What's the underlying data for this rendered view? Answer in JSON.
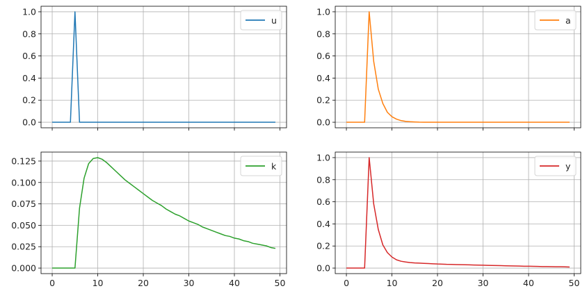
{
  "chart_data": [
    {
      "type": "line",
      "title": "",
      "xlabel": "",
      "ylabel": "",
      "xlim": [
        -2.45,
        51.45
      ],
      "ylim": [
        -0.05,
        1.05
      ],
      "xticks": [
        0,
        10,
        20,
        30,
        40,
        50
      ],
      "show_xtick_labels": false,
      "yticks": [
        0.0,
        0.2,
        0.4,
        0.6,
        0.8,
        1.0
      ],
      "ytick_format": 1,
      "grid": true,
      "legend": "top-right",
      "series": [
        {
          "name": "u",
          "color": "#1f77b4",
          "x_start": 0,
          "values": [
            0,
            0,
            0,
            0,
            0,
            1,
            0,
            0,
            0,
            0,
            0,
            0,
            0,
            0,
            0,
            0,
            0,
            0,
            0,
            0,
            0,
            0,
            0,
            0,
            0,
            0,
            0,
            0,
            0,
            0,
            0,
            0,
            0,
            0,
            0,
            0,
            0,
            0,
            0,
            0,
            0,
            0,
            0,
            0,
            0,
            0,
            0,
            0,
            0,
            0
          ]
        }
      ]
    },
    {
      "type": "line",
      "title": "",
      "xlabel": "",
      "ylabel": "",
      "xlim": [
        -2.45,
        51.45
      ],
      "ylim": [
        -0.05,
        1.05
      ],
      "xticks": [
        0,
        10,
        20,
        30,
        40,
        50
      ],
      "show_xtick_labels": false,
      "yticks": [
        0.0,
        0.2,
        0.4,
        0.6,
        0.8,
        1.0
      ],
      "ytick_format": 1,
      "grid": true,
      "legend": "top-right",
      "series": [
        {
          "name": "a",
          "color": "#ff7f0e",
          "x_start": 0,
          "values": [
            0,
            0,
            0,
            0,
            0,
            1,
            0.55,
            0.3,
            0.17,
            0.09,
            0.05,
            0.028,
            0.015,
            0.008,
            0.005,
            0.003,
            0.001,
            0,
            0,
            0,
            0,
            0,
            0,
            0,
            0,
            0,
            0,
            0,
            0,
            0,
            0,
            0,
            0,
            0,
            0,
            0,
            0,
            0,
            0,
            0,
            0,
            0,
            0,
            0,
            0,
            0,
            0,
            0,
            0,
            0
          ]
        }
      ]
    },
    {
      "type": "line",
      "title": "",
      "xlabel": "",
      "ylabel": "",
      "xlim": [
        -2.45,
        51.45
      ],
      "ylim": [
        -0.00645,
        0.1355
      ],
      "xticks": [
        0,
        10,
        20,
        30,
        40,
        50
      ],
      "show_xtick_labels": true,
      "yticks": [
        0.0,
        0.025,
        0.05,
        0.075,
        0.1,
        0.125
      ],
      "ytick_format": 3,
      "grid": true,
      "legend": "top-right",
      "series": [
        {
          "name": "k",
          "color": "#2ca02c",
          "x_start": 0,
          "values": [
            0,
            0,
            0,
            0,
            0,
            0,
            0.07,
            0.105,
            0.122,
            0.128,
            0.129,
            0.127,
            0.123,
            0.118,
            0.113,
            0.108,
            0.103,
            0.099,
            0.095,
            0.091,
            0.087,
            0.083,
            0.079,
            0.076,
            0.073,
            0.069,
            0.066,
            0.063,
            0.061,
            0.058,
            0.055,
            0.053,
            0.051,
            0.048,
            0.046,
            0.044,
            0.042,
            0.04,
            0.038,
            0.037,
            0.035,
            0.034,
            0.032,
            0.031,
            0.029,
            0.028,
            0.027,
            0.026,
            0.024,
            0.023
          ]
        }
      ]
    },
    {
      "type": "line",
      "title": "",
      "xlabel": "",
      "ylabel": "",
      "xlim": [
        -2.45,
        51.45
      ],
      "ylim": [
        -0.05,
        1.05
      ],
      "xticks": [
        0,
        10,
        20,
        30,
        40,
        50
      ],
      "show_xtick_labels": true,
      "yticks": [
        0.0,
        0.2,
        0.4,
        0.6,
        0.8,
        1.0
      ],
      "ytick_format": 1,
      "grid": true,
      "legend": "top-right",
      "series": [
        {
          "name": "y",
          "color": "#d62728",
          "x_start": 0,
          "values": [
            0,
            0,
            0,
            0,
            0,
            1,
            0.58,
            0.35,
            0.21,
            0.14,
            0.1,
            0.075,
            0.062,
            0.055,
            0.05,
            0.047,
            0.045,
            0.043,
            0.041,
            0.039,
            0.037,
            0.036,
            0.034,
            0.033,
            0.032,
            0.031,
            0.03,
            0.029,
            0.028,
            0.027,
            0.026,
            0.025,
            0.024,
            0.023,
            0.022,
            0.021,
            0.02,
            0.019,
            0.018,
            0.017,
            0.017,
            0.016,
            0.015,
            0.014,
            0.014,
            0.013,
            0.012,
            0.012,
            0.011,
            0.01
          ]
        }
      ]
    }
  ]
}
